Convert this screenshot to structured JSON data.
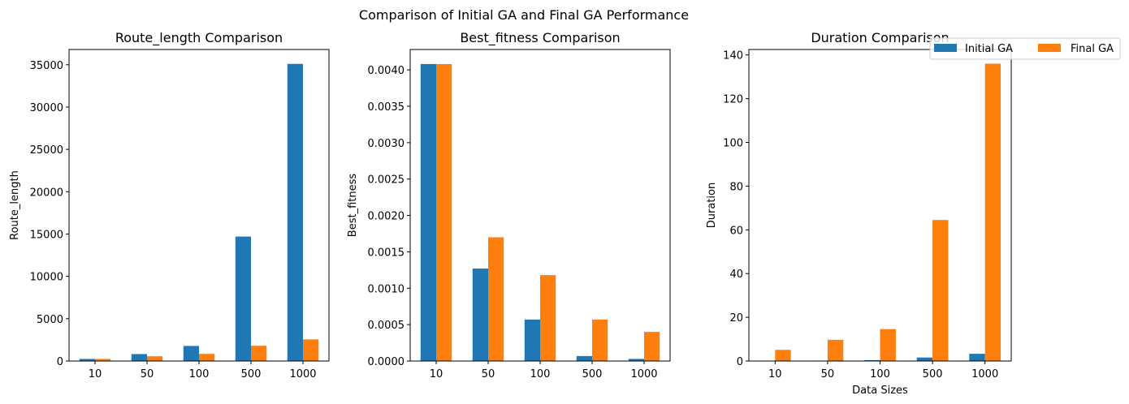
{
  "figure": {
    "title": "Comparison of Initial GA and Final GA Performance"
  },
  "colors": {
    "initial": "#1f77b4",
    "final": "#ff7f0e"
  },
  "legend": {
    "placement": "top-right",
    "entries": [
      "Initial GA",
      "Final GA"
    ]
  },
  "chart_data": [
    {
      "type": "bar",
      "title": "Route_length Comparison",
      "xlabel": "",
      "ylabel": "Route_length",
      "categories": [
        "10",
        "50",
        "100",
        "500",
        "1000"
      ],
      "ylim": [
        0,
        36800
      ],
      "yticks": [
        "0",
        "5000",
        "10000",
        "15000",
        "20000",
        "25000",
        "30000",
        "35000"
      ],
      "ytick_values": [
        0,
        5000,
        10000,
        15000,
        20000,
        25000,
        30000,
        35000
      ],
      "series": [
        {
          "name": "Initial GA",
          "values": [
            245,
            820,
            1780,
            14700,
            35100
          ]
        },
        {
          "name": "Final GA",
          "values": [
            245,
            560,
            840,
            1800,
            2550
          ]
        }
      ],
      "grid": false
    },
    {
      "type": "bar",
      "title": "Best_fitness Comparison",
      "xlabel": "",
      "ylabel": "Best_fitness",
      "categories": [
        "10",
        "50",
        "100",
        "500",
        "1000"
      ],
      "ylim": [
        0,
        0.00428
      ],
      "yticks": [
        "0.0000",
        "0.0005",
        "0.0010",
        "0.0015",
        "0.0020",
        "0.0025",
        "0.0030",
        "0.0035",
        "0.0040"
      ],
      "ytick_values": [
        0,
        0.0005,
        0.001,
        0.0015,
        0.002,
        0.0025,
        0.003,
        0.0035,
        0.004
      ],
      "series": [
        {
          "name": "Initial GA",
          "values": [
            0.00408,
            0.00127,
            0.00057,
            6.8e-05,
            2.9e-05
          ]
        },
        {
          "name": "Final GA",
          "values": [
            0.00408,
            0.0017,
            0.00118,
            0.00057,
            0.0004
          ]
        }
      ],
      "grid": false
    },
    {
      "type": "bar",
      "title": "Duration Comparison",
      "xlabel": "Data Sizes",
      "ylabel": "Duration",
      "categories": [
        "10",
        "50",
        "100",
        "500",
        "1000"
      ],
      "ylim": [
        0,
        142.5
      ],
      "yticks": [
        "0",
        "20",
        "40",
        "60",
        "80",
        "100",
        "120",
        "140"
      ],
      "ytick_values": [
        0,
        20,
        40,
        60,
        80,
        100,
        120,
        140
      ],
      "series": [
        {
          "name": "Initial GA",
          "values": [
            0.05,
            0.2,
            0.4,
            1.6,
            3.3
          ]
        },
        {
          "name": "Final GA",
          "values": [
            5.1,
            9.7,
            14.6,
            64.5,
            136
          ]
        }
      ],
      "grid": false
    }
  ]
}
